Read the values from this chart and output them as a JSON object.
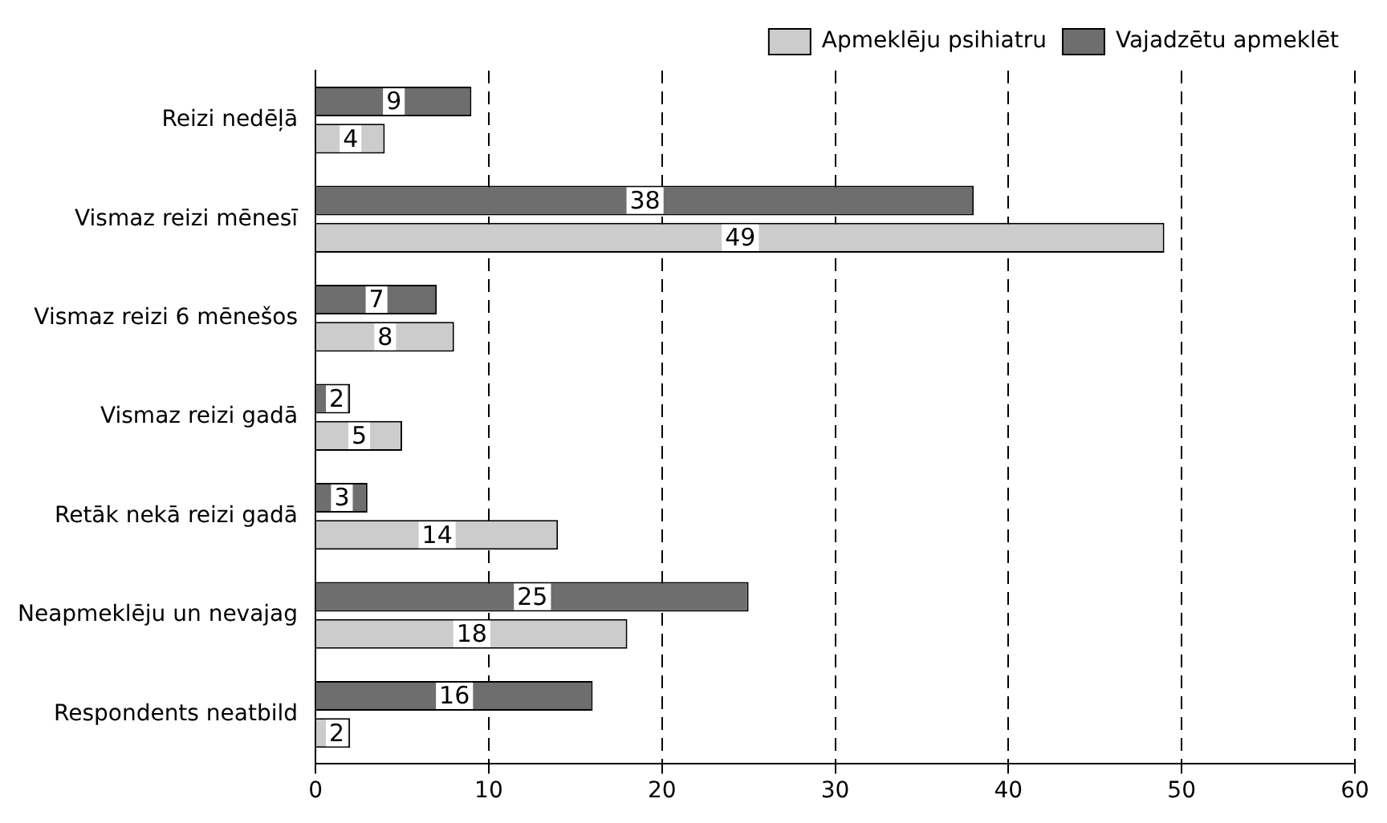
{
  "chart_data": {
    "type": "bar",
    "orientation": "horizontal",
    "categories": [
      "Reizi nedēļā",
      "Vismaz reizi mēnesī",
      "Vismaz reizi 6 mēnešos",
      "Vismaz reizi gadā",
      "Retāk nekā reizi gadā",
      "Neapmeklēju un nevajag",
      "Respondents neatbild"
    ],
    "series": [
      {
        "name": "Apmeklēju psihiatru",
        "color": "#cccccc",
        "values": [
          4,
          49,
          8,
          5,
          14,
          18,
          2
        ]
      },
      {
        "name": "Vajadzētu apmeklēt",
        "color": "#6e6e6e",
        "values": [
          9,
          38,
          7,
          2,
          3,
          25,
          16
        ]
      }
    ],
    "xlim": [
      0,
      60
    ],
    "xticks": [
      0,
      10,
      20,
      30,
      40,
      50,
      60
    ],
    "grid": "x",
    "line_style": "dashed",
    "legend": "top right",
    "data_labels": true
  }
}
